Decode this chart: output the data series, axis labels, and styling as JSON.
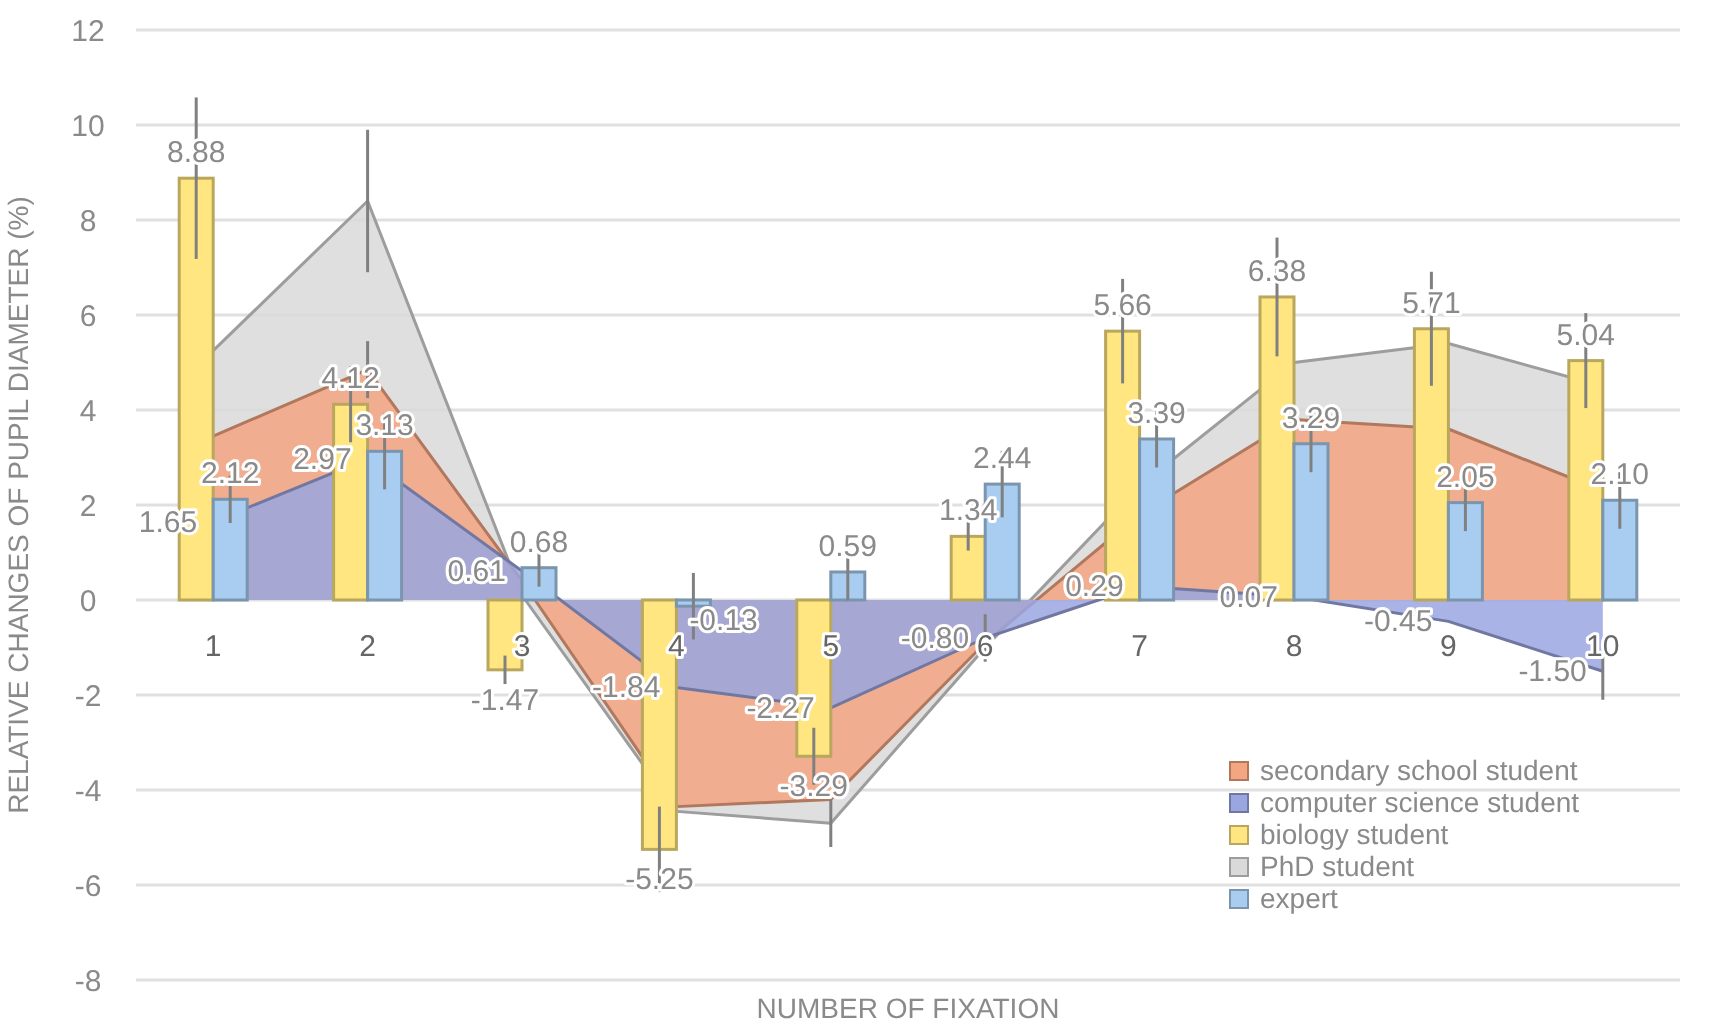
{
  "chart_data": {
    "type": "bar",
    "xlabel": "NUMBER OF FIXATION",
    "ylabel": "RELATIVE CHANGES OF PUPIL DIAMETER  (%)",
    "categories": [
      "1",
      "2",
      "3",
      "4",
      "5",
      "6",
      "7",
      "8",
      "9",
      "10"
    ],
    "ylim": [
      -8,
      12
    ],
    "yticks": [
      -8,
      -6,
      -4,
      -2,
      0,
      2,
      4,
      6,
      8,
      10,
      12
    ],
    "grid": "y",
    "legend": "bottom right",
    "series": [
      {
        "name": "secondary school student",
        "type": "area",
        "color": "#f4a582",
        "values": [
          3.45,
          4.85,
          0.4,
          -4.35,
          -4.2,
          -0.9,
          1.8,
          3.8,
          3.6,
          2.3
        ],
        "errors": [
          null,
          0.6,
          null,
          null,
          null,
          null,
          null,
          null,
          null,
          null
        ]
      },
      {
        "name": "computer science student",
        "type": "area",
        "color": "#9aa6e0",
        "values": [
          1.65,
          2.97,
          0.61,
          -1.84,
          -2.27,
          -0.8,
          0.29,
          0.07,
          -0.45,
          -1.5
        ],
        "value_labels": [
          "1.65",
          "2.97",
          "0.61",
          "-1.84",
          "-2.27",
          "-0.80",
          "0.29",
          "0.07",
          "-0.45",
          "-1.50"
        ],
        "errors": [
          null,
          null,
          null,
          null,
          null,
          0.5,
          null,
          null,
          null,
          0.6
        ]
      },
      {
        "name": "biology student",
        "color": "#ffe680",
        "values": [
          8.88,
          4.12,
          -1.47,
          -5.25,
          -3.29,
          1.34,
          5.66,
          6.38,
          5.71,
          5.04
        ],
        "value_labels": [
          "8.88",
          "4.12",
          "-1.47",
          "-5.25",
          "-3.29",
          "1.34",
          "5.66",
          "6.38",
          "5.71",
          "5.04"
        ],
        "errors": [
          1.7,
          0.8,
          0.3,
          0.9,
          0.6,
          0.3,
          1.1,
          1.25,
          1.2,
          1.0
        ]
      },
      {
        "name": "PhD student",
        "type": "area",
        "color": "#d9d9d9",
        "values": [
          5.25,
          8.4,
          0.1,
          -4.45,
          -4.7,
          -1.0,
          2.4,
          5.0,
          5.4,
          4.5
        ],
        "errors": [
          null,
          1.5,
          null,
          null,
          0.5,
          null,
          null,
          null,
          null,
          null
        ]
      },
      {
        "name": "expert",
        "color": "#a9cdf0",
        "values": [
          2.12,
          3.13,
          0.68,
          -0.13,
          0.59,
          2.44,
          3.39,
          3.29,
          2.05,
          2.1
        ],
        "value_labels": [
          "2.12",
          "3.13",
          "0.68",
          "-0.13",
          "0.59",
          "2.44",
          "3.39",
          "3.29",
          "2.05",
          "2.10"
        ],
        "errors": [
          0.5,
          0.8,
          0.4,
          0.7,
          0.6,
          0.7,
          0.6,
          0.6,
          0.6,
          0.6
        ]
      }
    ]
  }
}
